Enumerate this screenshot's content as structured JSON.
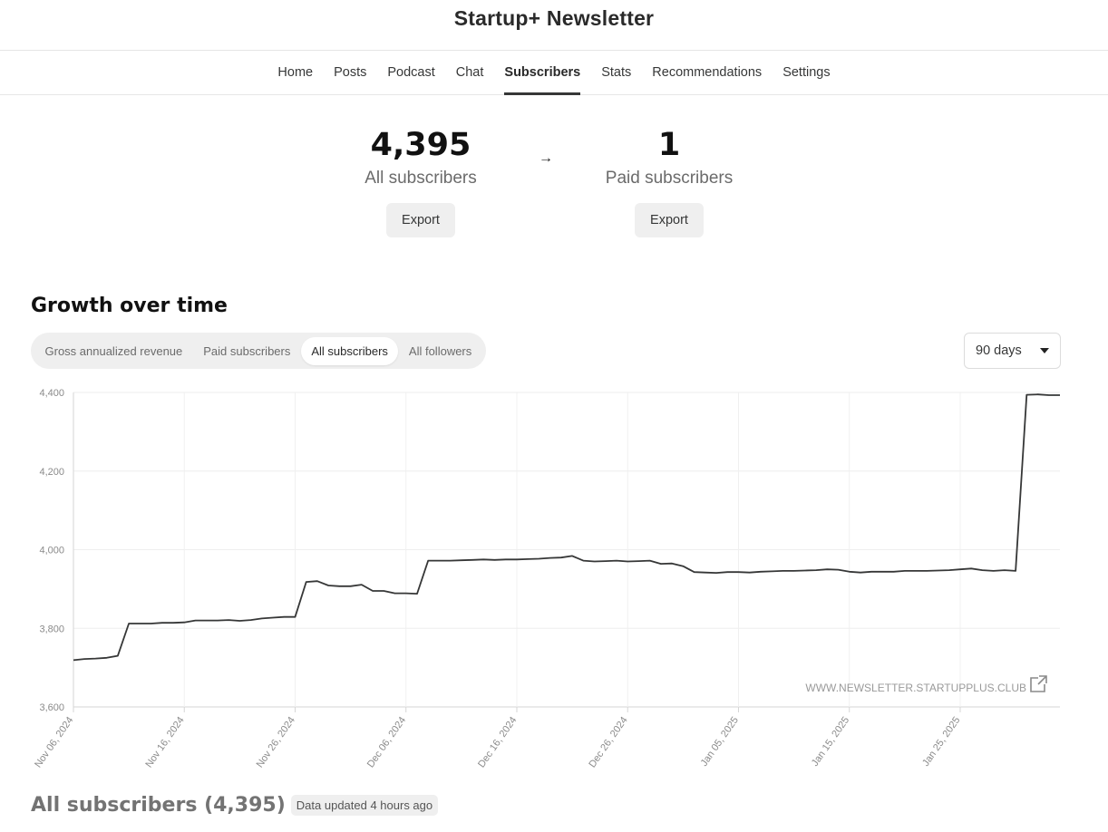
{
  "header": {
    "title": "Startup+ Newsletter"
  },
  "nav": {
    "items": [
      {
        "label": "Home",
        "active": false
      },
      {
        "label": "Posts",
        "active": false
      },
      {
        "label": "Podcast",
        "active": false
      },
      {
        "label": "Chat",
        "active": false
      },
      {
        "label": "Subscribers",
        "active": true
      },
      {
        "label": "Stats",
        "active": false
      },
      {
        "label": "Recommendations",
        "active": false
      },
      {
        "label": "Settings",
        "active": false
      }
    ]
  },
  "stats": {
    "all": {
      "value": "4,395",
      "label": "All subscribers",
      "export_label": "Export"
    },
    "arrow": "→",
    "paid": {
      "value": "1",
      "label": "Paid subscribers",
      "export_label": "Export"
    }
  },
  "growth": {
    "title": "Growth over time",
    "segments": [
      {
        "label": "Gross annualized revenue",
        "active": false
      },
      {
        "label": "Paid subscribers",
        "active": false
      },
      {
        "label": "All subscribers",
        "active": true
      },
      {
        "label": "All followers",
        "active": false
      }
    ],
    "range": {
      "value": "90 days"
    },
    "watermark": "WWW.NEWSLETTER.STARTUPPLUS.CLUB"
  },
  "chart_data": {
    "type": "line",
    "title": "",
    "xlabel": "",
    "ylabel": "",
    "ylim": [
      3600,
      4400
    ],
    "yticks": [
      3600,
      3800,
      4000,
      4200,
      4400
    ],
    "ytick_labels": [
      "3,600",
      "3,800",
      "4,000",
      "4,200",
      "4,400"
    ],
    "xrange": [
      "2024-11-06",
      "2025-02-03"
    ],
    "xticks": [
      "2024-11-06",
      "2024-11-16",
      "2024-11-26",
      "2024-12-06",
      "2024-12-16",
      "2024-12-26",
      "2025-01-05",
      "2025-01-15",
      "2025-01-25"
    ],
    "xtick_labels": [
      "Nov 06, 2024",
      "Nov 16, 2024",
      "Nov 26, 2024",
      "Dec 06, 2024",
      "Dec 16, 2024",
      "Dec 26, 2024",
      "Jan 05, 2025",
      "Jan 15, 2025",
      "Jan 25, 2025"
    ],
    "grid": true,
    "color": "#363737",
    "series": [
      {
        "x": [
          "2024-11-06",
          "2024-11-07",
          "2024-11-08",
          "2024-11-09",
          "2024-11-10",
          "2024-11-11",
          "2024-11-12",
          "2024-11-13",
          "2024-11-14",
          "2024-11-15",
          "2024-11-16",
          "2024-11-17",
          "2024-11-18",
          "2024-11-19",
          "2024-11-20",
          "2024-11-21",
          "2024-11-22",
          "2024-11-23",
          "2024-11-24",
          "2024-11-25",
          "2024-11-26",
          "2024-11-27",
          "2024-11-28",
          "2024-11-29",
          "2024-11-30",
          "2024-12-01",
          "2024-12-02",
          "2024-12-03",
          "2024-12-04",
          "2024-12-05",
          "2024-12-06",
          "2024-12-07",
          "2024-12-08",
          "2024-12-09",
          "2024-12-10",
          "2024-12-11",
          "2024-12-12",
          "2024-12-13",
          "2024-12-14",
          "2024-12-15",
          "2024-12-16",
          "2024-12-17",
          "2024-12-18",
          "2024-12-19",
          "2024-12-20",
          "2024-12-21",
          "2024-12-22",
          "2024-12-23",
          "2024-12-24",
          "2024-12-25",
          "2024-12-26",
          "2024-12-27",
          "2024-12-28",
          "2024-12-29",
          "2024-12-30",
          "2024-12-31",
          "2025-01-01",
          "2025-01-02",
          "2025-01-03",
          "2025-01-04",
          "2025-01-05",
          "2025-01-06",
          "2025-01-07",
          "2025-01-08",
          "2025-01-09",
          "2025-01-10",
          "2025-01-11",
          "2025-01-12",
          "2025-01-13",
          "2025-01-14",
          "2025-01-15",
          "2025-01-16",
          "2025-01-17",
          "2025-01-18",
          "2025-01-19",
          "2025-01-20",
          "2025-01-21",
          "2025-01-22",
          "2025-01-23",
          "2025-01-24",
          "2025-01-25",
          "2025-01-26",
          "2025-01-27",
          "2025-01-28",
          "2025-01-29",
          "2025-01-30",
          "2025-01-31",
          "2025-02-01",
          "2025-02-02",
          "2025-02-03"
        ],
        "values": [
          3719,
          3722,
          3723,
          3725,
          3730,
          3812,
          3812,
          3812,
          3814,
          3814,
          3815,
          3820,
          3820,
          3820,
          3821,
          3819,
          3821,
          3825,
          3827,
          3829,
          3829,
          3918,
          3920,
          3909,
          3907,
          3907,
          3911,
          3895,
          3895,
          3889,
          3889,
          3888,
          3972,
          3972,
          3972,
          3973,
          3974,
          3975,
          3974,
          3975,
          3975,
          3976,
          3977,
          3979,
          3980,
          3984,
          3972,
          3970,
          3971,
          3972,
          3970,
          3971,
          3972,
          3964,
          3965,
          3958,
          3943,
          3942,
          3941,
          3943,
          3943,
          3942,
          3944,
          3945,
          3946,
          3946,
          3947,
          3948,
          3950,
          3949,
          3944,
          3942,
          3944,
          3944,
          3944,
          3946,
          3946,
          3946,
          3947,
          3948,
          3950,
          3952,
          3948,
          3946,
          3948,
          3946,
          4394,
          4395,
          4393,
          4393
        ]
      }
    ]
  },
  "subscribers_list": {
    "title": "All subscribers (4,395)",
    "updated": "Data updated 4 hours ago"
  }
}
